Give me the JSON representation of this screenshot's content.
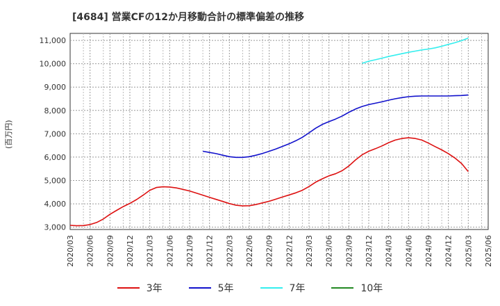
{
  "title": "[4684]  営業CFの12か月移動合計の標準偏差の推移",
  "ylabel": "(百万円)",
  "chart_data": {
    "type": "line",
    "title": "[4684]  営業CFの12か月移動合計の標準偏差の推移",
    "ylabel": "(百万円)",
    "xlabel": "",
    "ylim": [
      2900,
      11300
    ],
    "yticks": [
      3000,
      4000,
      5000,
      6000,
      7000,
      8000,
      9000,
      10000,
      11000
    ],
    "ytick_labels": [
      "3,000",
      "4,000",
      "5,000",
      "6,000",
      "7,000",
      "8,000",
      "9,000",
      "10,000",
      "11,000"
    ],
    "xticks": [
      "2020/03",
      "2020/06",
      "2020/09",
      "2020/12",
      "2021/03",
      "2021/06",
      "2021/09",
      "2021/12",
      "2022/03",
      "2022/06",
      "2022/09",
      "2022/12",
      "2023/03",
      "2023/06",
      "2023/09",
      "2023/12",
      "2024/03",
      "2024/06",
      "2024/09",
      "2024/12",
      "2025/03",
      "2025/06"
    ],
    "grid": true,
    "legend_position": "bottom",
    "series": [
      {
        "name": "3年",
        "color": "#dd1111",
        "x": [
          "2020/03",
          "2020/04",
          "2020/05",
          "2020/06",
          "2020/07",
          "2020/08",
          "2020/09",
          "2020/10",
          "2020/11",
          "2020/12",
          "2021/01",
          "2021/02",
          "2021/03",
          "2021/04",
          "2021/05",
          "2021/06",
          "2021/07",
          "2021/08",
          "2021/09",
          "2021/10",
          "2021/11",
          "2021/12",
          "2022/01",
          "2022/02",
          "2022/03",
          "2022/04",
          "2022/05",
          "2022/06",
          "2022/07",
          "2022/08",
          "2022/09",
          "2022/10",
          "2022/11",
          "2022/12",
          "2023/01",
          "2023/02",
          "2023/03",
          "2023/04",
          "2023/05",
          "2023/06",
          "2023/07",
          "2023/08",
          "2023/09",
          "2023/10",
          "2023/11",
          "2023/12",
          "2024/01",
          "2024/02",
          "2024/03",
          "2024/04",
          "2024/05",
          "2024/06",
          "2024/07",
          "2024/08",
          "2024/09",
          "2024/10",
          "2024/11",
          "2024/12",
          "2025/01",
          "2025/02",
          "2025/03"
        ],
        "values": [
          3080,
          3060,
          3070,
          3110,
          3200,
          3350,
          3550,
          3720,
          3880,
          4020,
          4180,
          4370,
          4580,
          4700,
          4730,
          4720,
          4680,
          4620,
          4550,
          4460,
          4370,
          4280,
          4190,
          4100,
          4010,
          3940,
          3910,
          3920,
          3970,
          4040,
          4110,
          4200,
          4290,
          4380,
          4470,
          4580,
          4740,
          4930,
          5070,
          5200,
          5290,
          5420,
          5620,
          5880,
          6100,
          6250,
          6360,
          6480,
          6620,
          6730,
          6800,
          6830,
          6800,
          6730,
          6600,
          6450,
          6310,
          6150,
          5960,
          5720,
          5380
        ]
      },
      {
        "name": "5年",
        "color": "#1111cc",
        "x": [
          "2021/11",
          "2021/12",
          "2022/01",
          "2022/02",
          "2022/03",
          "2022/04",
          "2022/05",
          "2022/06",
          "2022/07",
          "2022/08",
          "2022/09",
          "2022/10",
          "2022/11",
          "2022/12",
          "2023/01",
          "2023/02",
          "2023/03",
          "2023/04",
          "2023/05",
          "2023/06",
          "2023/07",
          "2023/08",
          "2023/09",
          "2023/10",
          "2023/11",
          "2023/12",
          "2024/01",
          "2024/02",
          "2024/03",
          "2024/04",
          "2024/05",
          "2024/06",
          "2024/07",
          "2024/08",
          "2024/09",
          "2024/10",
          "2024/11",
          "2024/12",
          "2025/01",
          "2025/02",
          "2025/03"
        ],
        "values": [
          6250,
          6200,
          6150,
          6080,
          6020,
          5990,
          5990,
          6020,
          6080,
          6160,
          6250,
          6350,
          6460,
          6570,
          6700,
          6850,
          7040,
          7240,
          7400,
          7520,
          7630,
          7760,
          7920,
          8060,
          8170,
          8250,
          8310,
          8370,
          8440,
          8500,
          8550,
          8590,
          8610,
          8620,
          8620,
          8620,
          8620,
          8620,
          8630,
          8640,
          8660
        ]
      },
      {
        "name": "7年",
        "color": "#33eeee",
        "x": [
          "2023/11",
          "2023/12",
          "2024/01",
          "2024/02",
          "2024/03",
          "2024/04",
          "2024/05",
          "2024/06",
          "2024/07",
          "2024/08",
          "2024/09",
          "2024/10",
          "2024/11",
          "2024/12",
          "2025/01",
          "2025/02",
          "2025/03"
        ],
        "values": [
          10020,
          10110,
          10170,
          10240,
          10310,
          10370,
          10430,
          10490,
          10540,
          10590,
          10630,
          10680,
          10750,
          10830,
          10900,
          10990,
          11100
        ]
      },
      {
        "name": "10年",
        "color": "#228822",
        "x": [],
        "values": []
      }
    ]
  }
}
